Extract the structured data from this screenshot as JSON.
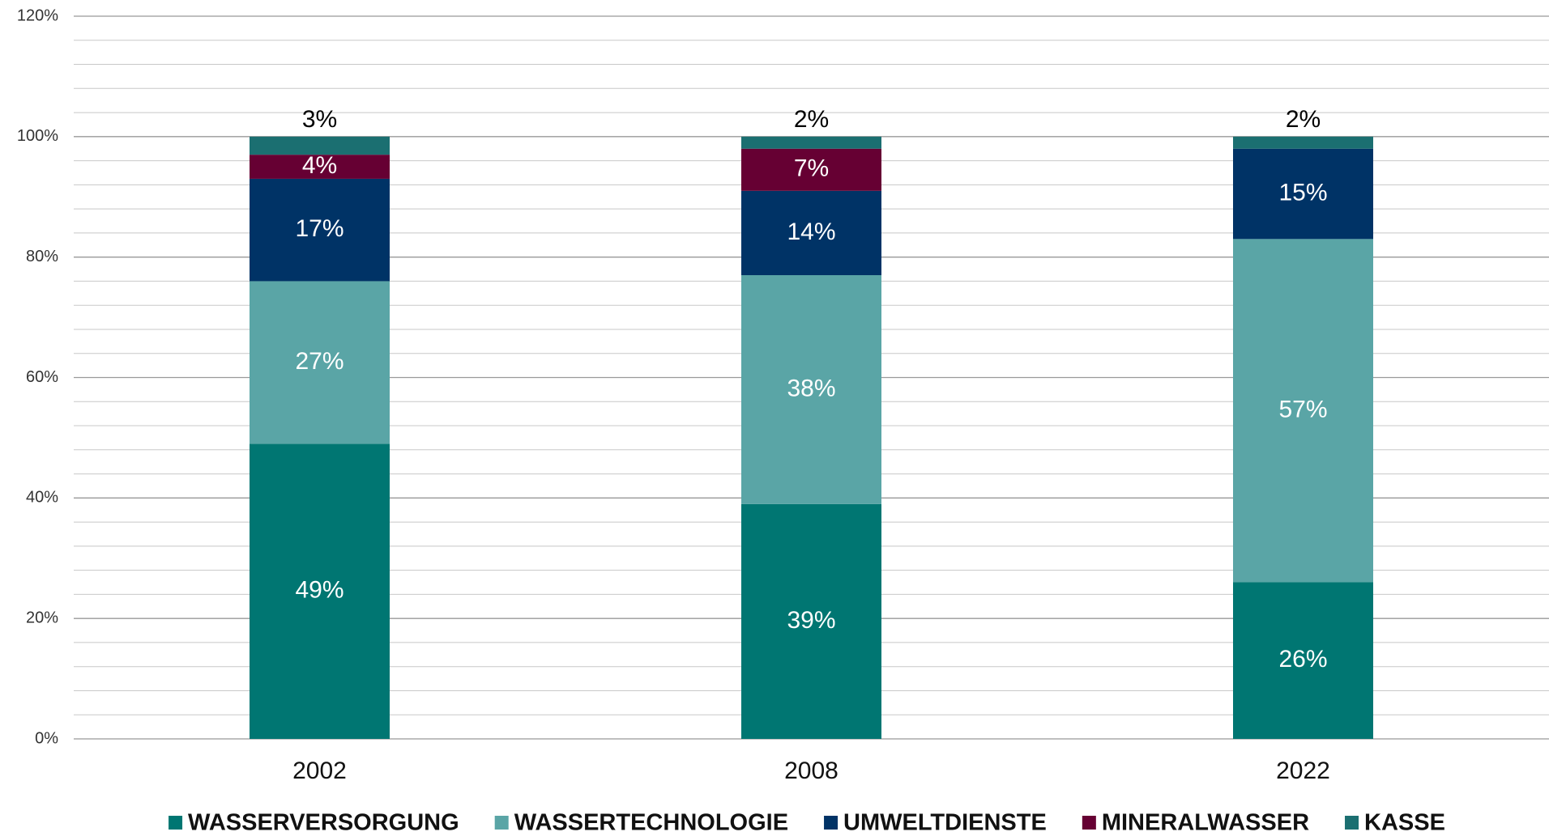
{
  "chart_data": {
    "type": "stacked_bar",
    "categories": [
      "2002",
      "2008",
      "2022"
    ],
    "series": [
      {
        "name": "WASSERVERSORGUNG",
        "color": "#007672",
        "label_color": "#ffffff",
        "values": [
          49,
          39,
          26
        ],
        "value_labels": [
          "49%",
          "39%",
          "26%"
        ]
      },
      {
        "name": "WASSERTECHNOLOGIE",
        "color": "#5aa5a6",
        "label_color": "#ffffff",
        "values": [
          27,
          38,
          57
        ],
        "value_labels": [
          "27%",
          "38%",
          "57%"
        ]
      },
      {
        "name": "UMWELTDIENSTE",
        "color": "#003366",
        "label_color": "#ffffff",
        "values": [
          17,
          14,
          15
        ],
        "value_labels": [
          "17%",
          "14%",
          "15%"
        ]
      },
      {
        "name": "MINERALWASSER",
        "color": "#660033",
        "label_color": "#ffffff",
        "values": [
          4,
          7,
          0
        ],
        "value_labels": [
          "4%",
          "7%",
          null
        ]
      },
      {
        "name": "KASSE",
        "color": "#1b6f71",
        "label_color": "#000000",
        "label_position": "above",
        "values": [
          3,
          2,
          2
        ],
        "value_labels": [
          "3%",
          "2%",
          "2%"
        ]
      }
    ],
    "ylim": [
      0,
      120
    ],
    "yticks": [
      {
        "value": 0,
        "label": "0%"
      },
      {
        "value": 20,
        "label": "20%"
      },
      {
        "value": 40,
        "label": "40%"
      },
      {
        "value": 60,
        "label": "60%"
      },
      {
        "value": 80,
        "label": "80%"
      },
      {
        "value": 100,
        "label": "100%"
      },
      {
        "value": 120,
        "label": "120%"
      }
    ],
    "minor_yticks": [
      4,
      8,
      12,
      16,
      24,
      28,
      32,
      36,
      44,
      48,
      52,
      56,
      64,
      68,
      72,
      76,
      84,
      88,
      92,
      96,
      104,
      108,
      112,
      116
    ],
    "grid": true,
    "legend": "bottom"
  }
}
